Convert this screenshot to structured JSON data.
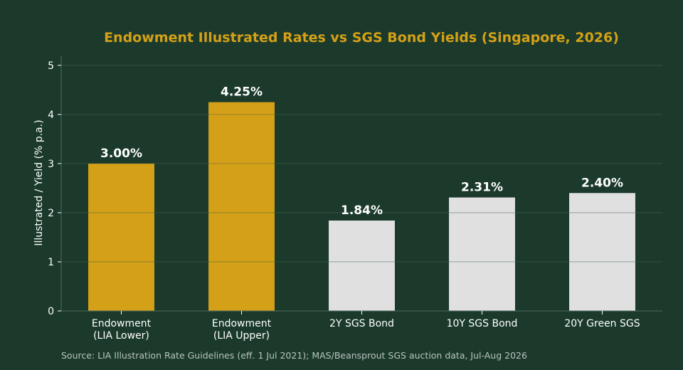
{
  "chart_data": {
    "type": "bar",
    "title": "Endowment Illustrated Rates vs SGS Bond Yields (Singapore, 2026)",
    "ylabel": "Illustrated / Yield (% p.a.)",
    "xlabel": "",
    "categories": [
      [
        "Endowment",
        "(LIA Lower)"
      ],
      [
        "Endowment",
        "(LIA Upper)"
      ],
      [
        "2Y SGS Bond"
      ],
      [
        "10Y SGS Bond"
      ],
      [
        "20Y Green SGS"
      ]
    ],
    "values": [
      3.0,
      4.25,
      1.84,
      2.31,
      2.4
    ],
    "data_labels": [
      "3.00%",
      "4.25%",
      "1.84%",
      "2.31%",
      "2.40%"
    ],
    "bar_colors": [
      "#d4a017",
      "#d4a017",
      "#e0e0e0",
      "#e0e0e0",
      "#e0e0e0"
    ],
    "ylim": [
      0,
      5.2
    ],
    "yticks": [
      0,
      1,
      2,
      3,
      4,
      5
    ],
    "grid": true,
    "legend": "none",
    "source": "Source: LIA Illustration Rate Guidelines (eff. 1 Jul 2021); MAS/Beansprout SGS auction data, Jul-Aug 2026"
  },
  "colors": {
    "background": "#1b3a2c",
    "title": "#d4a017",
    "gridline": "#2a4a3a",
    "axis": "#4f6a5c",
    "text": "#ffffff",
    "source_text": "#b9c3bd"
  }
}
